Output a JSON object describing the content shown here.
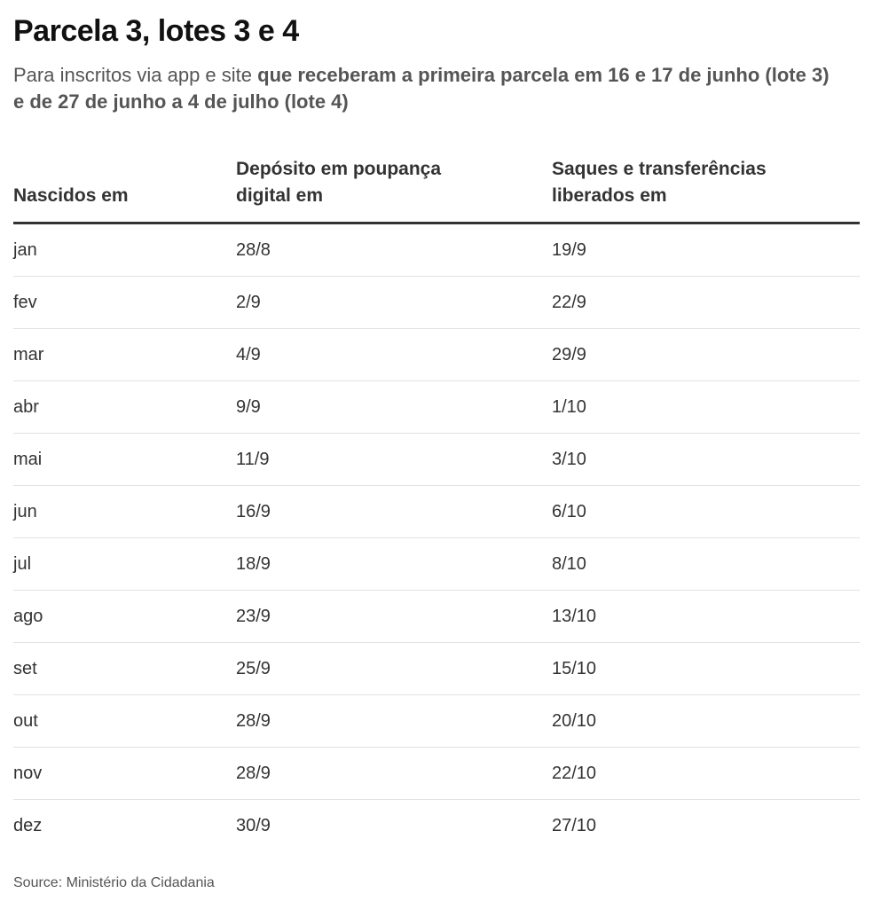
{
  "title": "Parcela 3, lotes 3 e 4",
  "subtitle": {
    "plain": "Para inscritos via app e site ",
    "bold": "que receberam a primeira parcela em 16 e 17 de junho (lote 3) e de 27 de junho a 4 de julho (lote 4)"
  },
  "table": {
    "headers": {
      "col1_line1": "",
      "col1_line2": "Nascidos em",
      "col2_line1": "Depósito em poupança",
      "col2_line2": "digital em",
      "col3_line1": "Saques e transferências",
      "col3_line2": "liberados em"
    },
    "rows": [
      {
        "month": "jan",
        "deposit": "28/8",
        "withdraw": "19/9"
      },
      {
        "month": "fev",
        "deposit": "2/9",
        "withdraw": "22/9"
      },
      {
        "month": "mar",
        "deposit": "4/9",
        "withdraw": "29/9"
      },
      {
        "month": "abr",
        "deposit": "9/9",
        "withdraw": "1/10"
      },
      {
        "month": "mai",
        "deposit": "11/9",
        "withdraw": "3/10"
      },
      {
        "month": "jun",
        "deposit": "16/9",
        "withdraw": "6/10"
      },
      {
        "month": "jul",
        "deposit": "18/9",
        "withdraw": "8/10"
      },
      {
        "month": "ago",
        "deposit": "23/9",
        "withdraw": "13/10"
      },
      {
        "month": "set",
        "deposit": "25/9",
        "withdraw": "15/10"
      },
      {
        "month": "out",
        "deposit": "28/9",
        "withdraw": "20/10"
      },
      {
        "month": "nov",
        "deposit": "28/9",
        "withdraw": "22/10"
      },
      {
        "month": "dez",
        "deposit": "30/9",
        "withdraw": "27/10"
      }
    ]
  },
  "source": "Source: Ministério da Cidadania"
}
